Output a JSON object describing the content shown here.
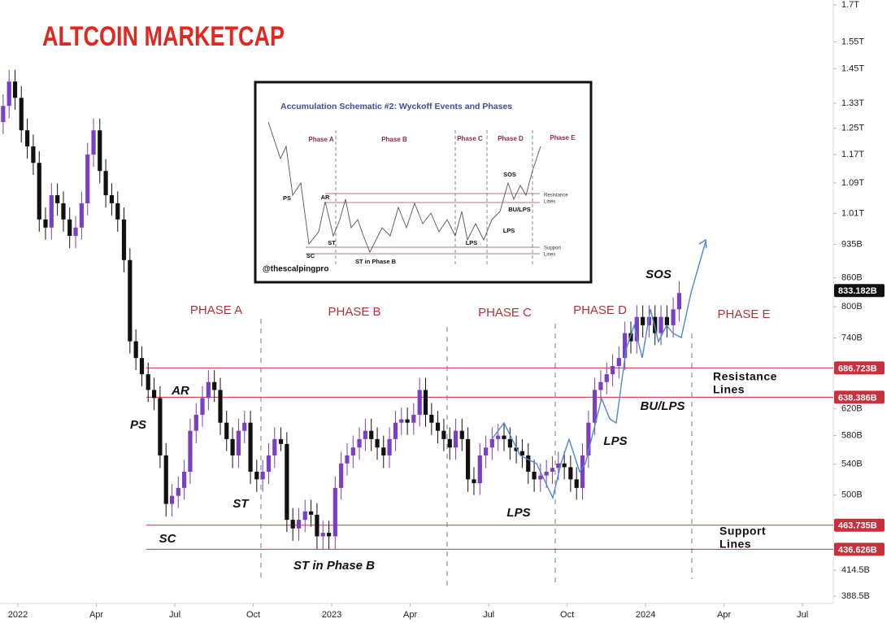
{
  "chart_data": {
    "type": "candlestick",
    "title": "ALTCOIN MARKETCAP",
    "log_scale": true,
    "grid": false,
    "up_color": "#7b3fc2",
    "down_color": "#111111",
    "level_color": "#c8303c",
    "xlim": [
      2021.943,
      2024.598
    ],
    "ylim": [
      381.4,
      1721
    ],
    "xticks": [
      {
        "value": 2022,
        "label": "2022"
      },
      {
        "value": 2022.25,
        "label": "Apr"
      },
      {
        "value": 2022.5,
        "label": "Jul"
      },
      {
        "value": 2022.75,
        "label": "Oct"
      },
      {
        "value": 2023,
        "label": "2023"
      },
      {
        "value": 2023.25,
        "label": "Apr"
      },
      {
        "value": 2023.5,
        "label": "Jul"
      },
      {
        "value": 2023.75,
        "label": "Oct"
      },
      {
        "value": 2024,
        "label": "2024"
      },
      {
        "value": 2024.25,
        "label": "Apr"
      },
      {
        "value": 2024.5,
        "label": "Jul"
      }
    ],
    "yticks": [
      {
        "value": 1700,
        "label": "1.7T"
      },
      {
        "value": 1550,
        "label": "1.55T"
      },
      {
        "value": 1450,
        "label": "1.45T"
      },
      {
        "value": 1330,
        "label": "1.33T"
      },
      {
        "value": 1250,
        "label": "1.25T"
      },
      {
        "value": 1170,
        "label": "1.17T"
      },
      {
        "value": 1090,
        "label": "1.09T"
      },
      {
        "value": 1010,
        "label": "1.01T"
      },
      {
        "value": 935,
        "label": "935B"
      },
      {
        "value": 860,
        "label": "860B"
      },
      {
        "value": 800,
        "label": "800B"
      },
      {
        "value": 740,
        "label": "740B"
      },
      {
        "value": 620,
        "label": "620B"
      },
      {
        "value": 580,
        "label": "580B"
      },
      {
        "value": 540,
        "label": "540B"
      },
      {
        "value": 500,
        "label": "500B"
      },
      {
        "value": 414.5,
        "label": "414.5B"
      },
      {
        "value": 388.5,
        "label": "388.5B"
      }
    ],
    "levels": [
      {
        "value": 686.723,
        "label": "686.723B"
      },
      {
        "value": 638.386,
        "label": "638.386B"
      },
      {
        "value": 463.735,
        "label": "463.735B"
      },
      {
        "value": 436.626,
        "label": "436.626B"
      }
    ],
    "last_price": {
      "value": 833.182,
      "label": "833.182B"
    },
    "x": [
      2021.953,
      2021.972,
      2021.991,
      2022.011,
      2022.03,
      2022.049,
      2022.068,
      2022.088,
      2022.107,
      2022.126,
      2022.145,
      2022.165,
      2022.184,
      2022.203,
      2022.222,
      2022.241,
      2022.261,
      2022.28,
      2022.299,
      2022.318,
      2022.338,
      2022.357,
      2022.376,
      2022.395,
      2022.415,
      2022.434,
      2022.453,
      2022.472,
      2022.491,
      2022.511,
      2022.53,
      2022.549,
      2022.568,
      2022.588,
      2022.607,
      2022.626,
      2022.645,
      2022.665,
      2022.684,
      2022.703,
      2022.722,
      2022.741,
      2022.761,
      2022.78,
      2022.799,
      2022.818,
      2022.838,
      2022.857,
      2022.876,
      2022.895,
      2022.915,
      2022.934,
      2022.953,
      2022.972,
      2022.991,
      2023.011,
      2023.03,
      2023.049,
      2023.068,
      2023.088,
      2023.107,
      2023.126,
      2023.145,
      2023.165,
      2023.184,
      2023.203,
      2023.222,
      2023.241,
      2023.261,
      2023.28,
      2023.299,
      2023.318,
      2023.338,
      2023.357,
      2023.376,
      2023.395,
      2023.415,
      2023.434,
      2023.453,
      2023.472,
      2023.491,
      2023.511,
      2023.53,
      2023.549,
      2023.568,
      2023.588,
      2023.607,
      2023.626,
      2023.645,
      2023.665,
      2023.684,
      2023.703,
      2023.722,
      2023.741,
      2023.761,
      2023.78,
      2023.799,
      2023.818,
      2023.838,
      2023.857,
      2023.876,
      2023.895,
      2023.915,
      2023.934,
      2023.953,
      2023.972,
      2023.991,
      2024.011,
      2024.03,
      2024.049,
      2024.068,
      2024.088,
      2024.107
    ],
    "open": [
      1269,
      1321,
      1404,
      1348,
      1243,
      1194,
      1146,
      995,
      975,
      1057,
      1036,
      995,
      955,
      975,
      1036,
      1170,
      1243,
      1123,
      1057,
      1036,
      995,
      899,
      734,
      704,
      676,
      650,
      637,
      552,
      489,
      499,
      509,
      530,
      587,
      611,
      637,
      663,
      650,
      599,
      575,
      552,
      587,
      599,
      530,
      520,
      530,
      552,
      575,
      568,
      470,
      460,
      470,
      480,
      476,
      451,
      455,
      451,
      509,
      541,
      552,
      563,
      575,
      587,
      575,
      563,
      552,
      575,
      599,
      604,
      599,
      611,
      650,
      611,
      599,
      587,
      575,
      563,
      587,
      575,
      520,
      515,
      552,
      563,
      575,
      580,
      575,
      563,
      558,
      552,
      530,
      520,
      525,
      530,
      535,
      541,
      536,
      520,
      509,
      552,
      599,
      650,
      663,
      676,
      690,
      704,
      749,
      734,
      780,
      764,
      780,
      749,
      780,
      764,
      795
    ],
    "high": [
      1360,
      1446,
      1446,
      1388,
      1280,
      1230,
      1180,
      1025,
      1089,
      1089,
      1067,
      1025,
      1004,
      1067,
      1205,
      1280,
      1280,
      1157,
      1089,
      1067,
      1025,
      926,
      756,
      725,
      696,
      670,
      656,
      569,
      514,
      524,
      546,
      605,
      629,
      656,
      683,
      683,
      670,
      617,
      592,
      605,
      617,
      617,
      546,
      546,
      569,
      592,
      592,
      585,
      484,
      484,
      494,
      494,
      490,
      469,
      469,
      524,
      557,
      569,
      580,
      592,
      605,
      605,
      592,
      580,
      592,
      617,
      622,
      622,
      629,
      670,
      670,
      629,
      617,
      605,
      592,
      605,
      605,
      592,
      536,
      569,
      580,
      592,
      597,
      597,
      592,
      580,
      575,
      569,
      546,
      541,
      546,
      551,
      557,
      557,
      552,
      536,
      569,
      617,
      670,
      683,
      696,
      711,
      725,
      771,
      771,
      803,
      803,
      803,
      803,
      803,
      803,
      819,
      853
    ],
    "low": [
      1231,
      1281,
      1308,
      1206,
      1158,
      1112,
      965,
      946,
      946,
      1005,
      965,
      926,
      926,
      946,
      1005,
      1135,
      1089,
      1025,
      1005,
      965,
      872,
      712,
      683,
      656,
      631,
      618,
      535,
      474,
      474,
      484,
      494,
      514,
      569,
      593,
      618,
      631,
      581,
      558,
      535,
      535,
      569,
      514,
      504,
      504,
      514,
      535,
      558,
      456,
      446,
      446,
      456,
      462,
      437,
      437,
      437,
      437,
      494,
      525,
      535,
      546,
      558,
      558,
      546,
      535,
      535,
      558,
      581,
      581,
      581,
      593,
      593,
      581,
      569,
      558,
      546,
      546,
      558,
      504,
      500,
      500,
      535,
      546,
      558,
      558,
      546,
      541,
      535,
      514,
      504,
      504,
      509,
      514,
      519,
      520,
      504,
      494,
      494,
      535,
      581,
      631,
      643,
      656,
      669,
      683,
      712,
      712,
      741,
      741,
      727,
      727,
      741,
      741,
      771
    ],
    "close": [
      1321,
      1404,
      1348,
      1243,
      1194,
      1146,
      995,
      975,
      1057,
      1036,
      995,
      955,
      975,
      1036,
      1170,
      1243,
      1123,
      1057,
      1036,
      995,
      899,
      734,
      704,
      676,
      650,
      637,
      552,
      489,
      499,
      509,
      530,
      587,
      611,
      637,
      663,
      650,
      599,
      575,
      552,
      587,
      599,
      530,
      520,
      530,
      552,
      575,
      568,
      470,
      460,
      470,
      480,
      476,
      451,
      455,
      451,
      509,
      541,
      552,
      563,
      575,
      587,
      575,
      563,
      552,
      575,
      599,
      604,
      599,
      611,
      650,
      611,
      599,
      587,
      575,
      563,
      587,
      575,
      520,
      515,
      552,
      563,
      575,
      580,
      575,
      563,
      558,
      552,
      530,
      520,
      525,
      530,
      535,
      541,
      536,
      520,
      509,
      552,
      599,
      650,
      663,
      676,
      690,
      704,
      749,
      734,
      780,
      764,
      780,
      749,
      780,
      764,
      795,
      828
    ],
    "annotations": {
      "phases": [
        "PHASE A",
        "PHASE B",
        "PHASE C",
        "PHASE D",
        "PHASE E"
      ],
      "events": [
        "PS",
        "AR",
        "SC",
        "ST",
        "ST in Phase B",
        "LPS",
        "LPS",
        "BU/LPS",
        "SOS"
      ],
      "resistance": [
        "Resistance",
        "Lines"
      ],
      "support": [
        "Support",
        "Lines"
      ]
    }
  },
  "inset": {
    "title": "Accumulation Schematic #2: Wyckoff Events and Phases",
    "phases": [
      "Phase A",
      "Phase B",
      "Phase C",
      "Phase D",
      "Phase E"
    ],
    "events": [
      "PS",
      "AR",
      "SC",
      "ST",
      "ST in Phase B",
      "SOS",
      "BU/LPS",
      "LPS",
      "LPS"
    ],
    "resistance": [
      "Resistance",
      "Lines"
    ],
    "support": [
      "Support",
      "Lines"
    ],
    "handle": "@thescalpingpro"
  }
}
